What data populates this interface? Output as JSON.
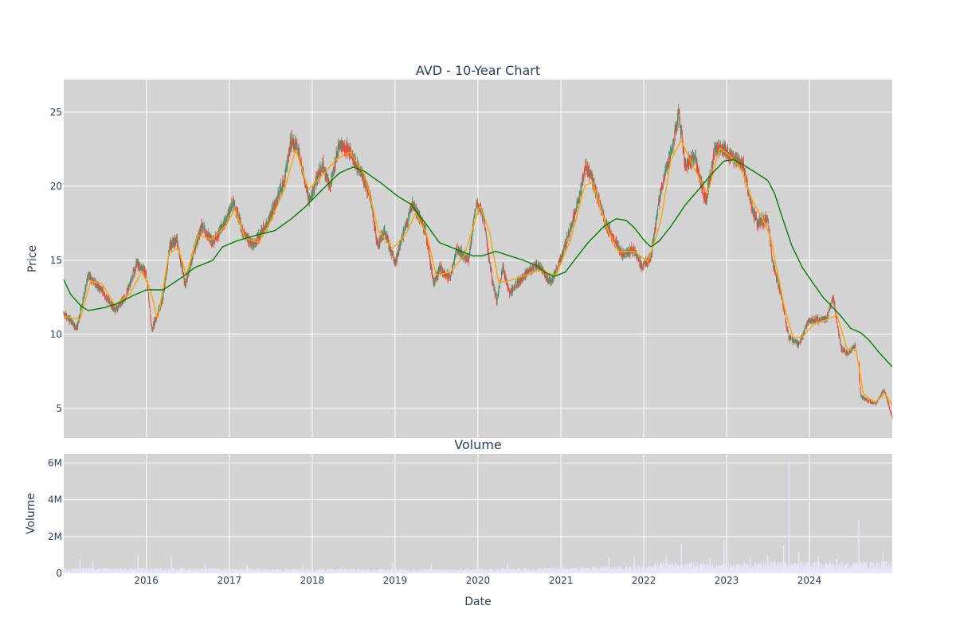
{
  "chart_data": [
    {
      "type": "candlestick",
      "title": "AVD - 10-Year Chart",
      "ylabel": "Price",
      "xlim": [
        "2015-01-02",
        "2024-12-31"
      ],
      "ylim": [
        3.0,
        27.2
      ],
      "yticks": [
        5,
        10,
        15,
        20,
        25
      ],
      "grid": true,
      "legend": "none",
      "colors": {
        "increasing": "#3d9970",
        "decreasing": "#ff4136",
        "ma_short": "#ffa500",
        "ma_long": "#008000",
        "plot_bg": "#d3d3d3"
      },
      "price_keyframes": [
        [
          "2015-01-02",
          11.4
        ],
        [
          "2015-03-01",
          10.4
        ],
        [
          "2015-04-20",
          14.0
        ],
        [
          "2015-06-15",
          13.0
        ],
        [
          "2015-08-15",
          11.6
        ],
        [
          "2015-10-01",
          12.5
        ],
        [
          "2015-11-20",
          14.8
        ],
        [
          "2015-12-31",
          14.2
        ],
        [
          "2016-01-25",
          10.3
        ],
        [
          "2016-03-15",
          12.5
        ],
        [
          "2016-04-15",
          16.0
        ],
        [
          "2016-05-15",
          16.4
        ],
        [
          "2016-06-20",
          13.3
        ],
        [
          "2016-08-01",
          15.8
        ],
        [
          "2016-09-01",
          17.3
        ],
        [
          "2016-10-20",
          16.2
        ],
        [
          "2016-12-10",
          17.5
        ],
        [
          "2017-01-20",
          19.0
        ],
        [
          "2017-03-01",
          16.8
        ],
        [
          "2017-04-15",
          16.0
        ],
        [
          "2017-06-15",
          17.5
        ],
        [
          "2017-07-15",
          18.5
        ],
        [
          "2017-09-01",
          20.5
        ],
        [
          "2017-10-01",
          23.2
        ],
        [
          "2017-10-30",
          22.5
        ],
        [
          "2017-12-20",
          19.0
        ],
        [
          "2018-02-15",
          21.5
        ],
        [
          "2018-03-20",
          20.0
        ],
        [
          "2018-05-01",
          22.8
        ],
        [
          "2018-06-10",
          22.5
        ],
        [
          "2018-08-01",
          21.0
        ],
        [
          "2018-09-15",
          19.2
        ],
        [
          "2018-10-15",
          16.0
        ],
        [
          "2018-11-15",
          17.0
        ],
        [
          "2019-01-01",
          14.8
        ],
        [
          "2019-02-15",
          17.2
        ],
        [
          "2019-03-20",
          18.8
        ],
        [
          "2019-05-15",
          17.0
        ],
        [
          "2019-06-20",
          13.5
        ],
        [
          "2019-07-20",
          14.5
        ],
        [
          "2019-09-01",
          13.8
        ],
        [
          "2019-10-01",
          15.8
        ],
        [
          "2019-11-20",
          15.0
        ],
        [
          "2019-12-25",
          18.8
        ],
        [
          "2020-01-25",
          18.0
        ],
        [
          "2020-03-05",
          13.5
        ],
        [
          "2020-03-25",
          12.3
        ],
        [
          "2020-04-20",
          14.5
        ],
        [
          "2020-05-20",
          12.8
        ],
        [
          "2020-07-15",
          13.8
        ],
        [
          "2020-09-15",
          14.8
        ],
        [
          "2020-11-20",
          13.5
        ],
        [
          "2021-01-10",
          15.5
        ],
        [
          "2021-03-20",
          19.0
        ],
        [
          "2021-04-20",
          21.5
        ],
        [
          "2021-05-20",
          20.5
        ],
        [
          "2021-07-15",
          17.5
        ],
        [
          "2021-08-20",
          16.5
        ],
        [
          "2021-10-01",
          15.3
        ],
        [
          "2021-11-15",
          15.8
        ],
        [
          "2021-12-25",
          14.5
        ],
        [
          "2022-02-01",
          15.2
        ],
        [
          "2022-03-20",
          20.0
        ],
        [
          "2022-05-10",
          22.8
        ],
        [
          "2022-06-05",
          25.0
        ],
        [
          "2022-07-01",
          21.5
        ],
        [
          "2022-08-15",
          22.0
        ],
        [
          "2022-10-01",
          19.0
        ],
        [
          "2022-11-10",
          22.5
        ],
        [
          "2022-12-20",
          22.5
        ],
        [
          "2023-01-25",
          22.0
        ],
        [
          "2023-03-15",
          21.5
        ],
        [
          "2023-04-15",
          19.0
        ],
        [
          "2023-05-15",
          17.5
        ],
        [
          "2023-07-01",
          17.8
        ],
        [
          "2023-07-20",
          15.0
        ],
        [
          "2023-09-01",
          12.5
        ],
        [
          "2023-10-01",
          9.8
        ],
        [
          "2023-11-15",
          9.3
        ],
        [
          "2023-12-25",
          10.8
        ],
        [
          "2024-02-01",
          11.0
        ],
        [
          "2024-03-15",
          11.0
        ],
        [
          "2024-04-15",
          12.5
        ],
        [
          "2024-05-20",
          9.0
        ],
        [
          "2024-06-20",
          8.7
        ],
        [
          "2024-07-20",
          9.3
        ],
        [
          "2024-08-15",
          5.8
        ],
        [
          "2024-09-15",
          5.5
        ],
        [
          "2024-10-20",
          5.3
        ],
        [
          "2024-11-25",
          6.3
        ],
        [
          "2024-12-31",
          4.4
        ]
      ],
      "ma_short_keyframes": [
        [
          "2015-01-02",
          11.2
        ],
        [
          "2015-03-15",
          11.0
        ],
        [
          "2015-05-01",
          13.6
        ],
        [
          "2015-06-20",
          13.4
        ],
        [
          "2015-08-15",
          12.0
        ],
        [
          "2015-10-20",
          12.7
        ],
        [
          "2015-12-10",
          14.2
        ],
        [
          "2016-01-15",
          13.2
        ],
        [
          "2016-02-20",
          11.0
        ],
        [
          "2016-04-10",
          15.5
        ],
        [
          "2016-05-20",
          15.8
        ],
        [
          "2016-06-25",
          14.0
        ],
        [
          "2016-08-15",
          16.7
        ],
        [
          "2016-10-15",
          16.4
        ],
        [
          "2016-12-20",
          17.4
        ],
        [
          "2017-01-25",
          18.5
        ],
        [
          "2017-03-10",
          16.5
        ],
        [
          "2017-05-10",
          16.2
        ],
        [
          "2017-07-01",
          17.6
        ],
        [
          "2017-09-01",
          19.8
        ],
        [
          "2017-10-20",
          22.5
        ],
        [
          "2017-12-15",
          19.8
        ],
        [
          "2018-02-20",
          20.8
        ],
        [
          "2018-04-15",
          21.8
        ],
        [
          "2018-06-15",
          22.3
        ],
        [
          "2018-08-20",
          20.8
        ],
        [
          "2018-10-20",
          17.0
        ],
        [
          "2018-12-20",
          15.8
        ],
        [
          "2019-02-20",
          16.8
        ],
        [
          "2019-04-01",
          18.2
        ],
        [
          "2019-05-20",
          16.8
        ],
        [
          "2019-07-01",
          14.0
        ],
        [
          "2019-09-01",
          14.2
        ],
        [
          "2019-11-01",
          15.3
        ],
        [
          "2020-01-10",
          18.7
        ],
        [
          "2020-02-20",
          17.0
        ],
        [
          "2020-04-01",
          13.5
        ],
        [
          "2020-05-15",
          13.6
        ],
        [
          "2020-07-15",
          13.9
        ],
        [
          "2020-09-20",
          14.3
        ],
        [
          "2020-12-10",
          14.0
        ],
        [
          "2021-02-15",
          16.5
        ],
        [
          "2021-04-15",
          20.0
        ],
        [
          "2021-05-20",
          20.3
        ],
        [
          "2021-07-20",
          17.3
        ],
        [
          "2021-09-10",
          15.6
        ],
        [
          "2021-11-20",
          15.6
        ],
        [
          "2022-01-20",
          14.9
        ],
        [
          "2022-03-15",
          17.5
        ],
        [
          "2022-05-01",
          21.8
        ],
        [
          "2022-06-15",
          23.1
        ],
        [
          "2022-08-01",
          21.5
        ],
        [
          "2022-10-10",
          19.5
        ],
        [
          "2022-12-01",
          22.6
        ],
        [
          "2023-01-20",
          22.0
        ],
        [
          "2023-03-10",
          21.0
        ],
        [
          "2023-04-20",
          19.2
        ],
        [
          "2023-06-15",
          17.6
        ],
        [
          "2023-07-15",
          16.5
        ],
        [
          "2023-09-10",
          12.0
        ],
        [
          "2023-10-20",
          9.8
        ],
        [
          "2023-12-01",
          9.8
        ],
        [
          "2024-01-20",
          10.7
        ],
        [
          "2024-03-20",
          11.0
        ],
        [
          "2024-05-01",
          11.3
        ],
        [
          "2024-06-15",
          9.0
        ],
        [
          "2024-07-25",
          8.9
        ],
        [
          "2024-08-25",
          6.0
        ],
        [
          "2024-10-15",
          5.4
        ],
        [
          "2024-12-01",
          6.0
        ],
        [
          "2024-12-31",
          5.2
        ]
      ],
      "ma_long_keyframes": [
        [
          "2015-01-02",
          13.7
        ],
        [
          "2015-02-01",
          12.7
        ],
        [
          "2015-03-20",
          11.9
        ],
        [
          "2015-04-20",
          11.6
        ],
        [
          "2015-06-30",
          11.8
        ],
        [
          "2015-09-01",
          12.1
        ],
        [
          "2015-11-01",
          12.6
        ],
        [
          "2016-01-01",
          13.0
        ],
        [
          "2016-03-15",
          13.0
        ],
        [
          "2016-06-01",
          13.8
        ],
        [
          "2016-08-01",
          14.5
        ],
        [
          "2016-10-20",
          15.0
        ],
        [
          "2016-12-01",
          15.9
        ],
        [
          "2017-02-01",
          16.3
        ],
        [
          "2017-05-01",
          16.7
        ],
        [
          "2017-07-20",
          17.0
        ],
        [
          "2017-10-01",
          17.8
        ],
        [
          "2017-12-01",
          18.6
        ],
        [
          "2018-03-01",
          20.0
        ],
        [
          "2018-05-01",
          20.9
        ],
        [
          "2018-07-01",
          21.3
        ],
        [
          "2018-08-20",
          21.0
        ],
        [
          "2018-11-01",
          20.2
        ],
        [
          "2019-01-15",
          19.3
        ],
        [
          "2019-03-10",
          18.8
        ],
        [
          "2019-05-15",
          17.5
        ],
        [
          "2019-07-15",
          16.2
        ],
        [
          "2019-09-01",
          15.9
        ],
        [
          "2019-10-20",
          15.6
        ],
        [
          "2019-12-10",
          15.3
        ],
        [
          "2020-01-20",
          15.3
        ],
        [
          "2020-03-20",
          15.6
        ],
        [
          "2020-05-20",
          15.3
        ],
        [
          "2020-07-20",
          15.0
        ],
        [
          "2020-09-20",
          14.6
        ],
        [
          "2020-10-20",
          14.2
        ],
        [
          "2020-12-01",
          13.9
        ],
        [
          "2021-01-20",
          14.2
        ],
        [
          "2021-03-01",
          15.0
        ],
        [
          "2021-05-01",
          16.2
        ],
        [
          "2021-07-10",
          17.3
        ],
        [
          "2021-09-01",
          17.8
        ],
        [
          "2021-10-15",
          17.7
        ],
        [
          "2021-11-20",
          17.2
        ],
        [
          "2022-01-05",
          16.3
        ],
        [
          "2022-02-01",
          15.9
        ],
        [
          "2022-03-10",
          16.3
        ],
        [
          "2022-05-01",
          17.3
        ],
        [
          "2022-07-01",
          18.7
        ],
        [
          "2022-09-01",
          19.8
        ],
        [
          "2022-11-01",
          20.9
        ],
        [
          "2022-12-20",
          21.7
        ],
        [
          "2023-02-01",
          21.8
        ],
        [
          "2023-03-20",
          21.4
        ],
        [
          "2023-05-01",
          21.0
        ],
        [
          "2023-07-01",
          20.4
        ],
        [
          "2023-08-01",
          19.5
        ],
        [
          "2023-09-01",
          18.0
        ],
        [
          "2023-10-15",
          16.0
        ],
        [
          "2023-12-01",
          14.5
        ],
        [
          "2024-01-15",
          13.5
        ],
        [
          "2024-03-01",
          12.5
        ],
        [
          "2024-04-01",
          12.0
        ],
        [
          "2024-05-15",
          11.3
        ],
        [
          "2024-07-01",
          10.4
        ],
        [
          "2024-08-15",
          10.1
        ],
        [
          "2024-09-20",
          9.6
        ],
        [
          "2024-11-01",
          8.8
        ],
        [
          "2024-12-31",
          7.8
        ]
      ]
    },
    {
      "type": "bar",
      "title": "Volume",
      "ylabel": "Volume",
      "xlabel": "Date",
      "xlim": [
        "2015-01-02",
        "2024-12-31"
      ],
      "ylim": [
        0,
        6500000
      ],
      "yticks": [
        0,
        2000000,
        4000000,
        6000000
      ],
      "ytick_labels": [
        "0",
        "2M",
        "4M",
        "6M"
      ],
      "xticks": [
        "2016",
        "2017",
        "2018",
        "2019",
        "2020",
        "2021",
        "2022",
        "2023",
        "2024"
      ],
      "grid": true,
      "colors": {
        "bar": "#e6e6fa",
        "plot_bg": "#d3d3d3"
      },
      "baseline_level": [
        [
          "2015-01-02",
          180000
        ],
        [
          "2016-06-01",
          200000
        ],
        [
          "2017-06-01",
          170000
        ],
        [
          "2019-06-01",
          150000
        ],
        [
          "2020-06-01",
          180000
        ],
        [
          "2021-06-01",
          230000
        ],
        [
          "2022-02-01",
          280000
        ],
        [
          "2022-04-01",
          420000
        ],
        [
          "2023-01-01",
          320000
        ],
        [
          "2023-08-01",
          420000
        ],
        [
          "2024-06-01",
          380000
        ],
        [
          "2024-12-31",
          420000
        ]
      ],
      "spikes": [
        [
          "2015-03-15",
          800000
        ],
        [
          "2015-05-10",
          650000
        ],
        [
          "2015-11-25",
          1050000
        ],
        [
          "2016-04-20",
          950000
        ],
        [
          "2016-09-15",
          500000
        ],
        [
          "2017-03-20",
          420000
        ],
        [
          "2017-11-20",
          420000
        ],
        [
          "2018-05-10",
          350000
        ],
        [
          "2018-12-20",
          600000
        ],
        [
          "2019-06-10",
          500000
        ],
        [
          "2019-12-30",
          600000
        ],
        [
          "2020-05-10",
          500000
        ],
        [
          "2021-08-01",
          900000
        ],
        [
          "2021-11-20",
          950000
        ],
        [
          "2022-04-10",
          1000000
        ],
        [
          "2022-06-15",
          1600000
        ],
        [
          "2022-10-20",
          800000
        ],
        [
          "2022-12-20",
          1800000
        ],
        [
          "2023-04-15",
          900000
        ],
        [
          "2023-07-01",
          1000000
        ],
        [
          "2023-09-10",
          1500000
        ],
        [
          "2023-10-03",
          6100000
        ],
        [
          "2023-11-15",
          1100000
        ],
        [
          "2024-02-10",
          900000
        ],
        [
          "2024-05-01",
          800000
        ],
        [
          "2024-08-05",
          2850000
        ],
        [
          "2024-11-20",
          1200000
        ]
      ]
    }
  ]
}
